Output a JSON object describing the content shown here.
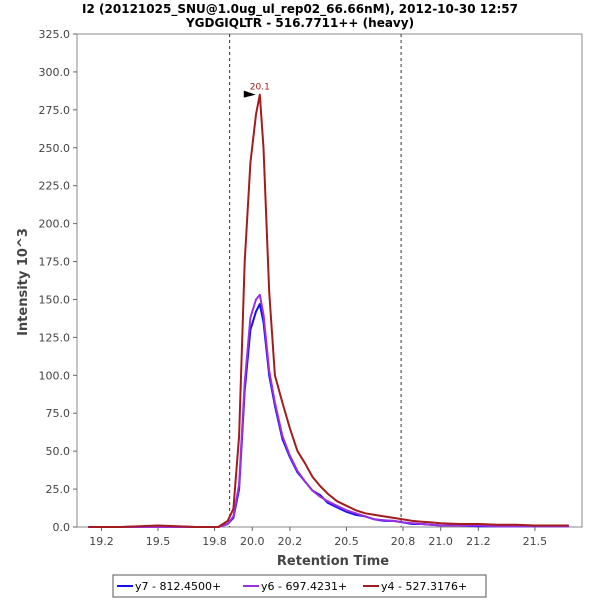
{
  "chart_data": {
    "type": "line",
    "title_line1": "I2 (20121025_SNU@1.0ug_ul_rep02_66.66nM), 2012-10-30 12:57",
    "title_line2": "YGDGIQLTR - 516.7711++ (heavy)",
    "xlabel": "Retention Time",
    "ylabel": "Intensity 10^3",
    "xlim": [
      19.07,
      21.75
    ],
    "ylim": [
      0,
      325
    ],
    "xticks": [
      19.2,
      19.5,
      19.8,
      20.0,
      20.2,
      20.5,
      20.8,
      21.0,
      21.2,
      21.5
    ],
    "xtick_labels": [
      "19.2",
      "19.5",
      "19.8",
      "20.0",
      "20.2",
      "20.5",
      "20.8",
      "21.0",
      "21.2",
      "21.5"
    ],
    "yticks": [
      0,
      25,
      50,
      75,
      100,
      125,
      150,
      175,
      200,
      225,
      250,
      275,
      300,
      325
    ],
    "ytick_labels": [
      "0.0",
      "25.0",
      "50.0",
      "75.0",
      "100.0",
      "125.0",
      "150.0",
      "175.0",
      "200.0",
      "225.0",
      "250.0",
      "275.0",
      "300.0",
      "325.0"
    ],
    "boundaries": [
      19.88,
      20.79
    ],
    "peak_annotation": {
      "text": "20.1",
      "x": 20.04,
      "y": 285,
      "color": "#a11d1d"
    },
    "legend_position": "bottom",
    "series": [
      {
        "name": "y7 - 812.4500+",
        "color": "#1010ee",
        "x": [
          19.13,
          19.3,
          19.5,
          19.7,
          19.82,
          19.87,
          19.9,
          19.93,
          19.96,
          19.99,
          20.02,
          20.04,
          20.06,
          20.09,
          20.12,
          20.16,
          20.2,
          20.24,
          20.28,
          20.32,
          20.36,
          20.4,
          20.45,
          20.5,
          20.55,
          20.6,
          20.65,
          20.7,
          20.75,
          20.8,
          20.85,
          20.9,
          20.95,
          21.0,
          21.1,
          21.2,
          21.3,
          21.4,
          21.5,
          21.6,
          21.68
        ],
        "values": [
          0,
          0,
          0.5,
          0,
          0,
          2,
          6,
          25,
          90,
          130,
          142,
          147,
          135,
          100,
          80,
          58,
          46,
          36,
          30,
          24,
          21,
          16,
          13,
          10,
          8,
          7,
          5,
          4,
          4,
          3,
          2,
          2,
          1.5,
          1,
          1,
          0.5,
          0.5,
          0.5,
          0.5,
          0.5,
          0.5
        ]
      },
      {
        "name": "y6 - 697.4231+",
        "color": "#9b30e0",
        "x": [
          19.13,
          19.3,
          19.5,
          19.7,
          19.82,
          19.87,
          19.9,
          19.93,
          19.96,
          19.99,
          20.02,
          20.04,
          20.06,
          20.09,
          20.12,
          20.16,
          20.2,
          20.24,
          20.28,
          20.32,
          20.36,
          20.4,
          20.45,
          20.5,
          20.55,
          20.6,
          20.65,
          20.7,
          20.75,
          20.8,
          20.85,
          20.9,
          20.95,
          21.0,
          21.1,
          21.2,
          21.3,
          21.4,
          21.5,
          21.6,
          21.68
        ],
        "values": [
          0,
          0,
          0,
          0,
          0,
          2,
          7,
          28,
          95,
          138,
          150,
          153,
          140,
          103,
          82,
          60,
          47,
          37,
          30,
          24,
          20,
          17,
          14,
          11,
          9,
          7,
          5,
          4.5,
          4,
          3,
          2.5,
          2,
          1.5,
          1,
          1,
          1,
          0.5,
          0.5,
          0.5,
          0.5,
          0.5
        ]
      },
      {
        "name": "y4 - 527.3176+",
        "color": "#a11d1d",
        "x": [
          19.13,
          19.3,
          19.5,
          19.7,
          19.82,
          19.87,
          19.9,
          19.93,
          19.96,
          19.99,
          20.02,
          20.04,
          20.06,
          20.09,
          20.12,
          20.16,
          20.2,
          20.24,
          20.28,
          20.32,
          20.36,
          20.4,
          20.45,
          20.5,
          20.55,
          20.6,
          20.65,
          20.7,
          20.75,
          20.8,
          20.85,
          20.9,
          20.95,
          21.0,
          21.1,
          21.2,
          21.3,
          21.4,
          21.5,
          21.6,
          21.68
        ],
        "values": [
          0,
          0,
          1,
          0,
          0,
          4,
          12,
          60,
          175,
          240,
          272,
          285,
          250,
          155,
          100,
          82,
          65,
          50,
          42,
          33,
          27,
          22,
          17,
          14,
          11,
          9,
          8,
          7,
          6,
          5,
          4,
          3.5,
          3,
          2.5,
          2,
          2,
          1.5,
          1.5,
          1,
          1,
          1
        ]
      }
    ]
  }
}
